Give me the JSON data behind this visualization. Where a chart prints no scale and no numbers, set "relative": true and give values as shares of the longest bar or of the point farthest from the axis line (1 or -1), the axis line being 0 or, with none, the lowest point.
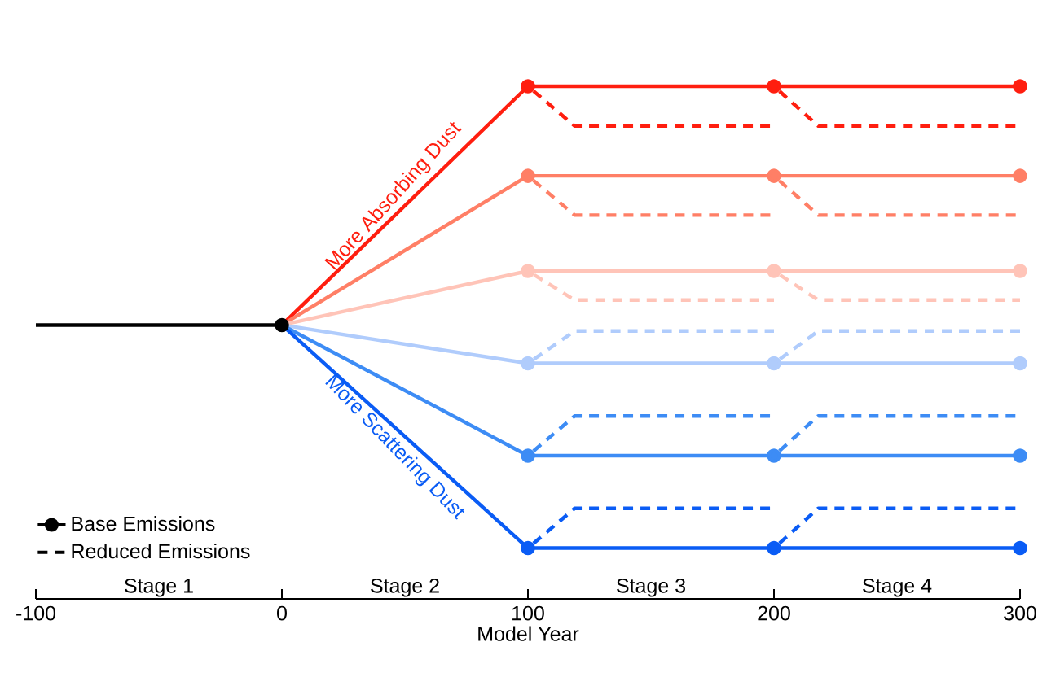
{
  "chart_data": {
    "type": "line",
    "relative": true,
    "xlabel": "Model Year",
    "xlim": [
      -100,
      300
    ],
    "xticks": [
      -100,
      0,
      100,
      200,
      300
    ],
    "tick_labels": "x",
    "grid": false,
    "legend": "bottom left",
    "series": [
      {
        "color": "#ff1e0f",
        "line_style": "solid",
        "marker": "circle",
        "x": [
          0,
          100,
          200,
          300
        ],
        "values": [
          0.483,
          1.0,
          1.0,
          1.0
        ]
      },
      {
        "color": "#ff1e0f",
        "line_style": "dashed",
        "marker": "none",
        "x": [
          100,
          119,
          200
        ],
        "values": [
          1.0,
          0.914,
          0.914
        ]
      },
      {
        "color": "#ff1e0f",
        "line_style": "dashed",
        "marker": "none",
        "x": [
          200,
          218,
          300
        ],
        "values": [
          1.0,
          0.914,
          0.914
        ]
      },
      {
        "color": "#ff7f66",
        "line_style": "solid",
        "marker": "circle",
        "x": [
          0,
          100,
          200,
          300
        ],
        "values": [
          0.483,
          0.806,
          0.806,
          0.806
        ]
      },
      {
        "color": "#ff7f66",
        "line_style": "dashed",
        "marker": "none",
        "x": [
          100,
          119,
          200
        ],
        "values": [
          0.806,
          0.721,
          0.721
        ]
      },
      {
        "color": "#ff7f66",
        "line_style": "dashed",
        "marker": "none",
        "x": [
          200,
          218,
          300
        ],
        "values": [
          0.806,
          0.721,
          0.721
        ]
      },
      {
        "color": "#ffc4b8",
        "line_style": "solid",
        "marker": "circle",
        "x": [
          0,
          100,
          200,
          300
        ],
        "values": [
          0.483,
          0.6,
          0.6,
          0.6
        ]
      },
      {
        "color": "#ffc4b8",
        "line_style": "dashed",
        "marker": "none",
        "x": [
          100,
          119,
          200
        ],
        "values": [
          0.6,
          0.537,
          0.537
        ]
      },
      {
        "color": "#ffc4b8",
        "line_style": "dashed",
        "marker": "none",
        "x": [
          200,
          218,
          300
        ],
        "values": [
          0.6,
          0.537,
          0.537
        ]
      },
      {
        "color": "#b0ccfc",
        "line_style": "solid",
        "marker": "circle",
        "x": [
          0,
          100,
          200,
          300
        ],
        "values": [
          0.483,
          0.4,
          0.4,
          0.4
        ]
      },
      {
        "color": "#b0ccfc",
        "line_style": "dashed",
        "marker": "none",
        "x": [
          100,
          119,
          200
        ],
        "values": [
          0.4,
          0.47,
          0.47
        ]
      },
      {
        "color": "#b0ccfc",
        "line_style": "dashed",
        "marker": "none",
        "x": [
          200,
          218,
          300
        ],
        "values": [
          0.4,
          0.47,
          0.47
        ]
      },
      {
        "color": "#3d8cf5",
        "line_style": "solid",
        "marker": "circle",
        "x": [
          0,
          100,
          200,
          300
        ],
        "values": [
          0.483,
          0.2,
          0.2,
          0.2
        ]
      },
      {
        "color": "#3d8cf5",
        "line_style": "dashed",
        "marker": "none",
        "x": [
          100,
          119,
          200
        ],
        "values": [
          0.2,
          0.286,
          0.286
        ]
      },
      {
        "color": "#3d8cf5",
        "line_style": "dashed",
        "marker": "none",
        "x": [
          200,
          218,
          300
        ],
        "values": [
          0.2,
          0.286,
          0.286
        ]
      },
      {
        "color": "#0a5cf5",
        "line_style": "solid",
        "marker": "circle",
        "x": [
          0,
          100,
          200,
          300
        ],
        "values": [
          0.483,
          0.0,
          0.0,
          0.0
        ]
      },
      {
        "color": "#0a5cf5",
        "line_style": "dashed",
        "marker": "none",
        "x": [
          100,
          119,
          200
        ],
        "values": [
          0.0,
          0.086,
          0.086
        ]
      },
      {
        "color": "#0a5cf5",
        "line_style": "dashed",
        "marker": "none",
        "x": [
          200,
          218,
          300
        ],
        "values": [
          0.0,
          0.086,
          0.086
        ]
      },
      {
        "name": "Base Emissions",
        "color": "#000000",
        "line_style": "solid",
        "marker": "circle",
        "x": [
          -100,
          0
        ],
        "values": [
          0.483,
          0.483
        ]
      }
    ],
    "annotations": [
      "Reduced Emissions",
      "Stage 1",
      "Stage 2",
      "Stage 3",
      "Stage 4",
      {
        "text": "More Absorbing Dust",
        "x": 50,
        "y": 0.74
      },
      {
        "text": "More Scattering Dust",
        "x": 50,
        "y": 0.24
      }
    ]
  }
}
